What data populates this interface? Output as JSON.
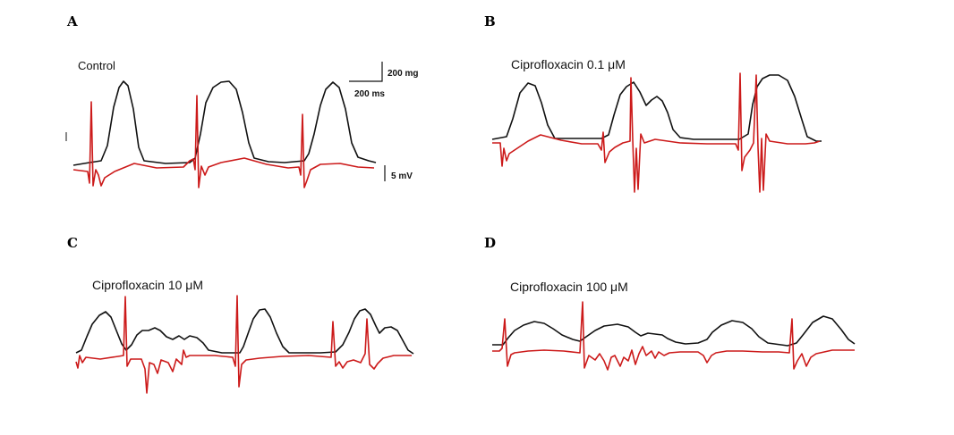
{
  "panels": [
    {
      "letter": "A",
      "condition": "Control"
    },
    {
      "letter": "B",
      "condition": "Ciprofloxacin 0.1 μM"
    },
    {
      "letter": "C",
      "condition": "Ciprofloxacin 10 μM"
    },
    {
      "letter": "D",
      "condition": "Ciprofloxacin 100  μM"
    }
  ],
  "scale_bars": {
    "force": "200 mg",
    "time": "200 ms",
    "voltage": "5 mV"
  },
  "colors": {
    "contraction_trace": "#111111",
    "electrical_trace": "#cc1a1a"
  }
}
